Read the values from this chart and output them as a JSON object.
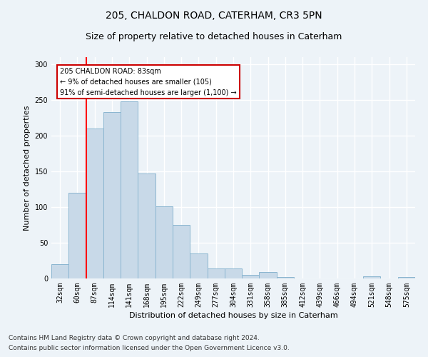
{
  "title1": "205, CHALDON ROAD, CATERHAM, CR3 5PN",
  "title2": "Size of property relative to detached houses in Caterham",
  "xlabel": "Distribution of detached houses by size in Caterham",
  "ylabel": "Number of detached properties",
  "categories": [
    "32sqm",
    "60sqm",
    "87sqm",
    "114sqm",
    "141sqm",
    "168sqm",
    "195sqm",
    "222sqm",
    "249sqm",
    "277sqm",
    "304sqm",
    "331sqm",
    "358sqm",
    "385sqm",
    "412sqm",
    "439sqm",
    "466sqm",
    "494sqm",
    "521sqm",
    "548sqm",
    "575sqm"
  ],
  "values": [
    20,
    120,
    210,
    233,
    248,
    147,
    101,
    75,
    35,
    14,
    14,
    5,
    9,
    2,
    0,
    0,
    0,
    0,
    3,
    0,
    2
  ],
  "bar_color": "#c8d9e8",
  "bar_edge_color": "#8ab5d0",
  "red_line_x": 1.5,
  "annotation_text": "205 CHALDON ROAD: 83sqm\n← 9% of detached houses are smaller (105)\n91% of semi-detached houses are larger (1,100) →",
  "annotation_box_color": "#ffffff",
  "annotation_box_edge_color": "#cc0000",
  "ylim": [
    0,
    310
  ],
  "yticks": [
    0,
    50,
    100,
    150,
    200,
    250,
    300
  ],
  "footnote1": "Contains HM Land Registry data © Crown copyright and database right 2024.",
  "footnote2": "Contains public sector information licensed under the Open Government Licence v3.0.",
  "background_color": "#edf3f8",
  "plot_background_color": "#edf3f8",
  "grid_color": "#ffffff",
  "title1_fontsize": 10,
  "title2_fontsize": 9,
  "xlabel_fontsize": 8,
  "ylabel_fontsize": 8,
  "tick_fontsize": 7,
  "footnote_fontsize": 6.5
}
